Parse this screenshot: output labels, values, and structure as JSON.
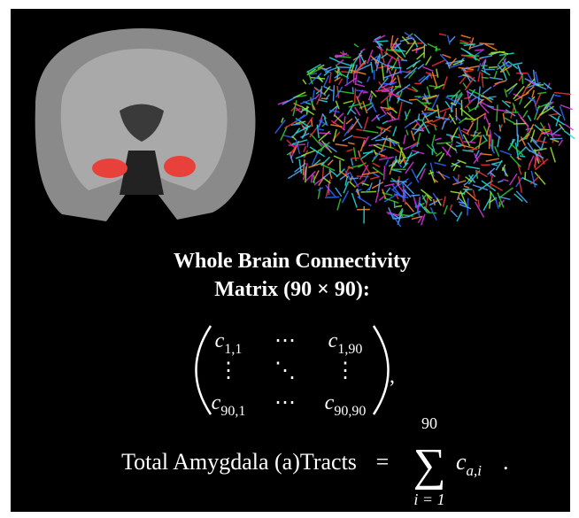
{
  "title": {
    "line1": "Whole Brain Connectivity",
    "line2": "Matrix (90 × 90):"
  },
  "matrix": {
    "rows": [
      [
        {
          "base": "c",
          "sub": "1,1"
        },
        {
          "base": "⋯"
        },
        {
          "base": "c",
          "sub": "1,90"
        }
      ],
      [
        {
          "base": "⋮"
        },
        {
          "base": "⋱"
        },
        {
          "base": "⋮"
        }
      ],
      [
        {
          "base": "c",
          "sub": "90,1"
        },
        {
          "base": "⋯"
        },
        {
          "base": "c",
          "sub": "90,90"
        }
      ]
    ],
    "trailing": ","
  },
  "equation": {
    "lhs": "Total Amygdala (a)Tracts",
    "equals": "=",
    "sum": "∑",
    "upper": "90",
    "lower": "i = 1",
    "term": {
      "base": "c",
      "sub": "a,i"
    },
    "end": "."
  }
}
